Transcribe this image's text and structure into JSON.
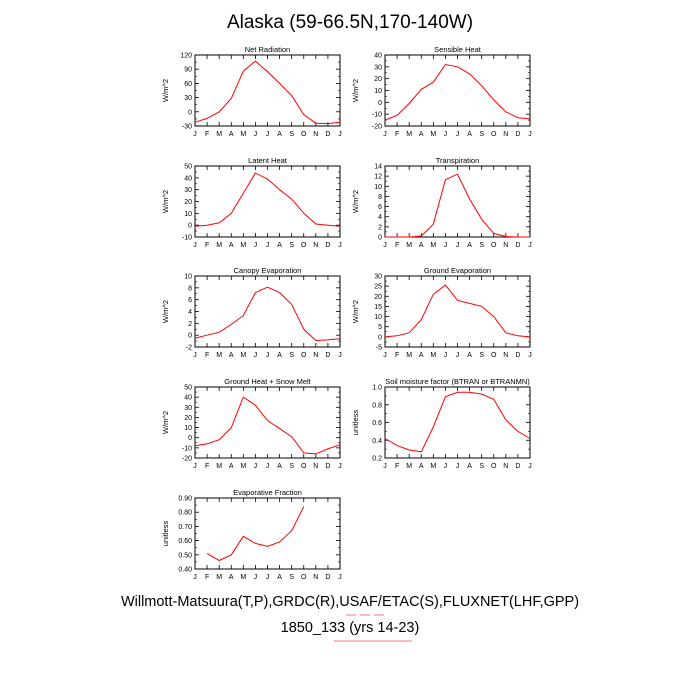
{
  "title": "Alaska (59-66.5N,170-140W)",
  "footer": {
    "line1": "Willmott-Matsuura(T,P),GRDC(R),USAF/ETAC(S),FLUXNET(LHF,GPP)",
    "line2": "1850_133 (yrs 14-23)"
  },
  "colors": {
    "series": "#ff0000",
    "deco": "#ff7777"
  },
  "months": [
    "J",
    "F",
    "M",
    "A",
    "M",
    "J",
    "J",
    "A",
    "S",
    "O",
    "N",
    "D",
    "J"
  ],
  "chart_data": [
    {
      "type": "line",
      "title": "Net Radiation",
      "ylabel": "W/m^2",
      "ylim": [
        -30,
        120
      ],
      "yticks": [
        -30,
        0,
        30,
        60,
        90,
        120
      ],
      "yticklabels": [
        "-30",
        "0",
        "30",
        "60",
        "90",
        "120"
      ],
      "x": [
        "J",
        "F",
        "M",
        "A",
        "M",
        "J",
        "J",
        "A",
        "S",
        "O",
        "N",
        "D",
        "J"
      ],
      "values": [
        -22,
        -14,
        0,
        28,
        86,
        107,
        85,
        60,
        34,
        -6,
        -24,
        -25,
        -22
      ]
    },
    {
      "type": "line",
      "title": "Sensible Heat",
      "ylabel": "W/m^2",
      "ylim": [
        -20,
        40
      ],
      "yticks": [
        -20,
        -10,
        0,
        10,
        20,
        30,
        40
      ],
      "yticklabels": [
        "-20",
        "-10",
        "0",
        "10",
        "20",
        "30",
        "40"
      ],
      "x": [
        "J",
        "F",
        "M",
        "A",
        "M",
        "J",
        "J",
        "A",
        "S",
        "O",
        "N",
        "D",
        "J"
      ],
      "values": [
        -15,
        -11,
        -1,
        11,
        17,
        32,
        30,
        24,
        14,
        2,
        -8,
        -13,
        -14
      ]
    },
    {
      "type": "line",
      "title": "Latent Heat",
      "ylabel": "W/m^2",
      "ylim": [
        -10,
        50
      ],
      "yticks": [
        -10,
        0,
        10,
        20,
        30,
        40,
        50
      ],
      "yticklabels": [
        "-10",
        "0",
        "10",
        "20",
        "30",
        "40",
        "50"
      ],
      "x": [
        "J",
        "F",
        "M",
        "A",
        "M",
        "J",
        "J",
        "A",
        "S",
        "O",
        "N",
        "D",
        "J"
      ],
      "values": [
        -1,
        0,
        2,
        10,
        27,
        44,
        39,
        30,
        22,
        10,
        1,
        0,
        -1
      ]
    },
    {
      "type": "line",
      "title": "Transpiration",
      "ylabel": "W/m^2",
      "ylim": [
        0,
        14
      ],
      "yticks": [
        0,
        2,
        4,
        6,
        8,
        10,
        12,
        14
      ],
      "yticklabels": [
        "0",
        "2",
        "4",
        "6",
        "8",
        "10",
        "12",
        "14"
      ],
      "x": [
        "J",
        "F",
        "M",
        "A",
        "M",
        "J",
        "J",
        "A",
        "S",
        "O",
        "N",
        "D",
        "J"
      ],
      "values": [
        0,
        0,
        0,
        0.2,
        2.5,
        11.3,
        12.4,
        7.5,
        3.5,
        0.7,
        0.1,
        0,
        0
      ]
    },
    {
      "type": "line",
      "title": "Canopy Evaporation",
      "ylabel": "W/m^2",
      "ylim": [
        -2,
        10
      ],
      "yticks": [
        -2,
        0,
        2,
        4,
        6,
        8,
        10
      ],
      "yticklabels": [
        "-2",
        "0",
        "2",
        "4",
        "6",
        "8",
        "10"
      ],
      "x": [
        "J",
        "F",
        "M",
        "A",
        "M",
        "J",
        "J",
        "A",
        "S",
        "O",
        "N",
        "D",
        "J"
      ],
      "values": [
        -0.5,
        0,
        0.5,
        1.8,
        3.3,
        7.2,
        8.1,
        7.2,
        5.2,
        1,
        -0.9,
        -0.8,
        -0.6
      ]
    },
    {
      "type": "line",
      "title": "Ground Evaporation",
      "ylabel": "W/m^2",
      "ylim": [
        -5,
        30
      ],
      "yticks": [
        -5,
        0,
        5,
        10,
        15,
        20,
        25,
        30
      ],
      "yticklabels": [
        "-5",
        "0",
        "5",
        "10",
        "15",
        "20",
        "25",
        "30"
      ],
      "x": [
        "J",
        "F",
        "M",
        "A",
        "M",
        "J",
        "J",
        "A",
        "S",
        "O",
        "N",
        "D",
        "J"
      ],
      "values": [
        0,
        0.5,
        2,
        8.5,
        21,
        25.5,
        18,
        16.5,
        15,
        10,
        2,
        0.5,
        0
      ]
    },
    {
      "type": "line",
      "title": "Ground Heat + Snow Melt",
      "ylabel": "W/m^2",
      "ylim": [
        -20,
        50
      ],
      "yticks": [
        -20,
        -10,
        0,
        10,
        20,
        30,
        40,
        50
      ],
      "yticklabels": [
        "-20",
        "-10",
        "0",
        "10",
        "20",
        "30",
        "40",
        "50"
      ],
      "x": [
        "J",
        "F",
        "M",
        "A",
        "M",
        "J",
        "J",
        "A",
        "S",
        "O",
        "N",
        "D",
        "J"
      ],
      "values": [
        -8,
        -6,
        -2,
        10,
        40,
        32,
        17,
        9,
        1,
        -15,
        -16,
        -11,
        -7
      ]
    },
    {
      "type": "line",
      "title": "Soil moisture factor (BTRAN or BTRANMN)",
      "ylabel": "unitless",
      "ylim": [
        0.2,
        1.0
      ],
      "yticks": [
        0.2,
        0.4,
        0.6,
        0.8,
        1.0
      ],
      "yticklabels": [
        "0.2",
        "0.4",
        "0.6",
        "0.8",
        "1.0"
      ],
      "x": [
        "J",
        "F",
        "M",
        "A",
        "M",
        "J",
        "J",
        "A",
        "S",
        "O",
        "N",
        "D",
        "J"
      ],
      "values": [
        0.42,
        0.34,
        0.29,
        0.27,
        0.55,
        0.89,
        0.94,
        0.94,
        0.92,
        0.86,
        0.63,
        0.5,
        0.42
      ]
    },
    {
      "type": "line",
      "title": "Evaporative Fraction",
      "ylabel": "unitless",
      "ylim": [
        0.4,
        0.9
      ],
      "yticks": [
        0.4,
        0.5,
        0.6,
        0.7,
        0.8,
        0.9
      ],
      "yticklabels": [
        "0.40",
        "0.50",
        "0.60",
        "0.70",
        "0.80",
        "0.90"
      ],
      "x": [
        "J",
        "F",
        "M",
        "A",
        "M",
        "J",
        "J",
        "A",
        "S",
        "O",
        "N",
        "D",
        "J"
      ],
      "values": [
        null,
        0.51,
        0.46,
        0.5,
        0.63,
        0.58,
        0.56,
        0.59,
        0.67,
        0.84,
        null,
        null,
        null
      ]
    }
  ]
}
